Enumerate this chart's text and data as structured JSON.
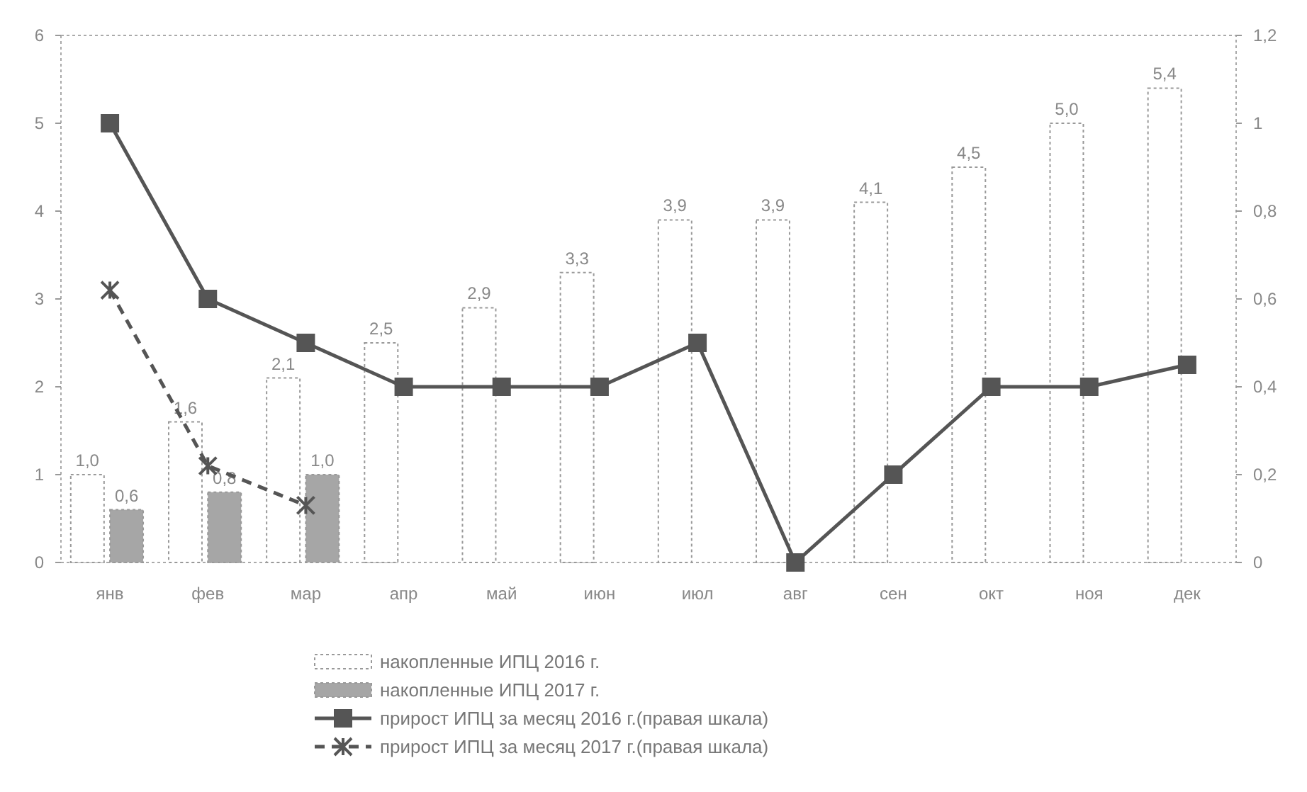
{
  "chart_data": {
    "type": "bar",
    "categories": [
      "янв",
      "фев",
      "мар",
      "апр",
      "май",
      "июн",
      "июл",
      "авг",
      "сен",
      "окт",
      "ноя",
      "дек"
    ],
    "series": [
      {
        "name": "накопленные ИПЦ 2016 г.",
        "color": "#ffffff",
        "values": [
          1.0,
          1.6,
          2.1,
          2.5,
          2.9,
          3.3,
          3.9,
          3.9,
          4.1,
          4.5,
          5.0,
          5.4
        ],
        "value_labels": [
          "1,0",
          "1,6",
          "2,1",
          "2,5",
          "2,9",
          "3,3",
          "3,9",
          "3,9",
          "4,1",
          "4,5",
          "5,0",
          "5,4"
        ]
      },
      {
        "name": "накопленные ИПЦ 2017 г.",
        "color": "#a6a6a6",
        "values": [
          0.6,
          0.8,
          1.0,
          null,
          null,
          null,
          null,
          null,
          null,
          null,
          null,
          null
        ],
        "value_labels": [
          "0,6",
          "0,8",
          "1,0",
          null,
          null,
          null,
          null,
          null,
          null,
          null,
          null,
          null
        ]
      },
      {
        "name": "прирост ИПЦ за месяц 2016 г.(правая шкала)",
        "type": "line",
        "axis": "y2",
        "color": "#555555",
        "marker": "square",
        "line_style": "solid",
        "values": [
          1.0,
          0.6,
          0.5,
          0.4,
          0.4,
          0.4,
          0.5,
          0.0,
          0.2,
          0.4,
          0.4,
          0.45
        ]
      },
      {
        "name": "прирост ИПЦ за месяц 2017 г.(правая шкала)",
        "type": "line",
        "axis": "y2",
        "color": "#555555",
        "marker": "cross",
        "line_style": "dashed",
        "values": [
          0.62,
          0.22,
          0.13,
          null,
          null,
          null,
          null,
          null,
          null,
          null,
          null,
          null
        ]
      }
    ],
    "ylim": [
      0,
      6
    ],
    "yticks": [
      0,
      1,
      2,
      3,
      4,
      5,
      6
    ],
    "y2lim": [
      0,
      1.2
    ],
    "y2ticks": [
      0,
      {
        "value": 0.2,
        "label": "0,2"
      },
      {
        "value": 0.4,
        "label": "0,4"
      },
      {
        "value": 0.6,
        "label": "0,6"
      },
      {
        "value": 0.8,
        "label": "0,8"
      },
      1,
      {
        "value": 1.2,
        "label": "1,2"
      }
    ],
    "grid": false,
    "legend": "bottom"
  }
}
